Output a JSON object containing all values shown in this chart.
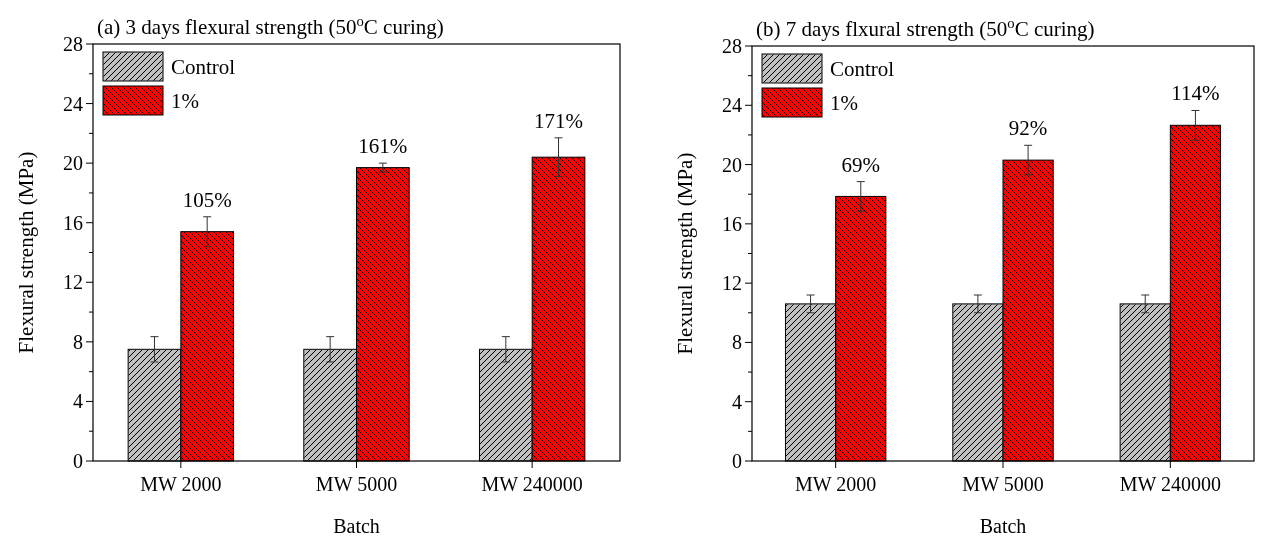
{
  "chart_data": [
    {
      "type": "bar",
      "title": "(a) 3 days flexural strength (50$^{o}$C curing)",
      "xlabel": "Batch",
      "ylabel": "Flexural strength (MPa)",
      "categories": [
        "MW 2000",
        "MW 5000",
        "MW 240000"
      ],
      "series": [
        {
          "name": "Control",
          "color": "#c0c0c0",
          "values": [
            7.5,
            7.5,
            7.5
          ],
          "errors": [
            0.85,
            0.85,
            0.85
          ]
        },
        {
          "name": "1%",
          "color": "#ff0000",
          "values": [
            15.4,
            19.7,
            20.4
          ],
          "errors": [
            1.0,
            0.3,
            1.3
          ]
        }
      ],
      "ylim": [
        0,
        28
      ],
      "yticks": [
        0,
        {
          "value": 2,
          "label": null
        },
        4,
        {
          "value": 6,
          "label": null
        },
        8,
        {
          "value": 10,
          "label": null
        },
        12,
        {
          "value": 14,
          "label": null
        },
        16,
        {
          "value": 18,
          "label": null
        },
        20,
        {
          "value": 22,
          "label": null
        },
        24,
        {
          "value": 26,
          "label": null
        },
        28
      ],
      "annotations": [
        "105%",
        "161%",
        "171%"
      ],
      "legend": "top left",
      "grid": false
    },
    {
      "type": "bar",
      "title": "(b) 7 days flxural strength (50$^{o}$C curing)",
      "xlabel": "Batch",
      "ylabel": "Flexural strength (MPa)",
      "categories": [
        "MW 2000",
        "MW 5000",
        "MW 240000"
      ],
      "series": [
        {
          "name": "Control",
          "color": "#c0c0c0",
          "values": [
            10.6,
            10.6,
            10.6
          ],
          "errors": [
            0.6,
            0.6,
            0.6
          ]
        },
        {
          "name": "1%",
          "color": "#ff0000",
          "values": [
            17.85,
            20.3,
            22.65
          ],
          "errors": [
            1.0,
            1.0,
            1.0
          ]
        }
      ],
      "ylim": [
        0,
        28
      ],
      "yticks": [
        0,
        {
          "value": 2,
          "label": null
        },
        4,
        {
          "value": 6,
          "label": null
        },
        8,
        {
          "value": 10,
          "label": null
        },
        12,
        {
          "value": 14,
          "label": null
        },
        16,
        {
          "value": 18,
          "label": null
        },
        20,
        {
          "value": 22,
          "label": null
        },
        24,
        {
          "value": 26,
          "label": null
        },
        28
      ],
      "annotations": [
        "69%",
        "92%",
        "114%"
      ],
      "legend": "top left",
      "grid": false
    }
  ]
}
